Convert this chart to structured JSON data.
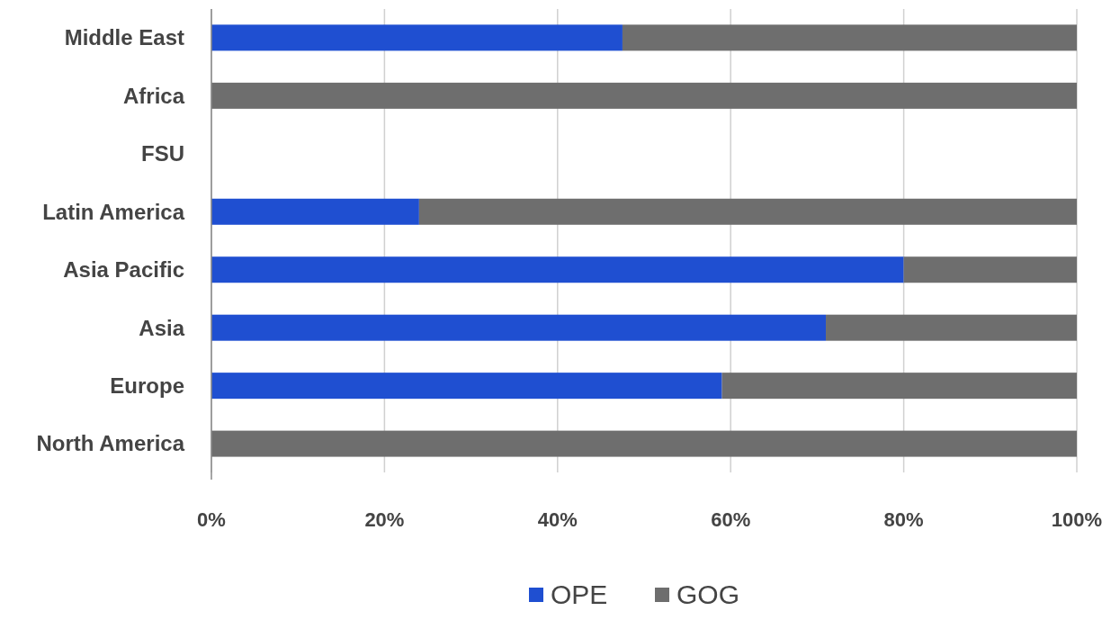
{
  "chart_data": {
    "type": "bar",
    "orientation": "horizontal",
    "stacked": true,
    "categories": [
      "Middle East",
      "Africa",
      "FSU",
      "Latin America",
      "Asia Pacific",
      "Asia",
      "Europe",
      "North America"
    ],
    "series": [
      {
        "name": "OPE",
        "color": "#1f4fd1",
        "values": [
          47.5,
          0,
          0,
          24,
          80,
          71,
          59,
          0
        ]
      },
      {
        "name": "GOG",
        "color": "#6e6e6e",
        "values": [
          52.5,
          100,
          0,
          76,
          20,
          29,
          41,
          100
        ]
      }
    ],
    "xlim": [
      0,
      100
    ],
    "xticks": [
      {
        "value": 0,
        "label": "0%"
      },
      {
        "value": 20,
        "label": "20%"
      },
      {
        "value": 40,
        "label": "40%"
      },
      {
        "value": 60,
        "label": "60%"
      },
      {
        "value": 80,
        "label": "80%"
      },
      {
        "value": 100,
        "label": "100%"
      }
    ],
    "grid": "x",
    "legend": "bottom"
  }
}
